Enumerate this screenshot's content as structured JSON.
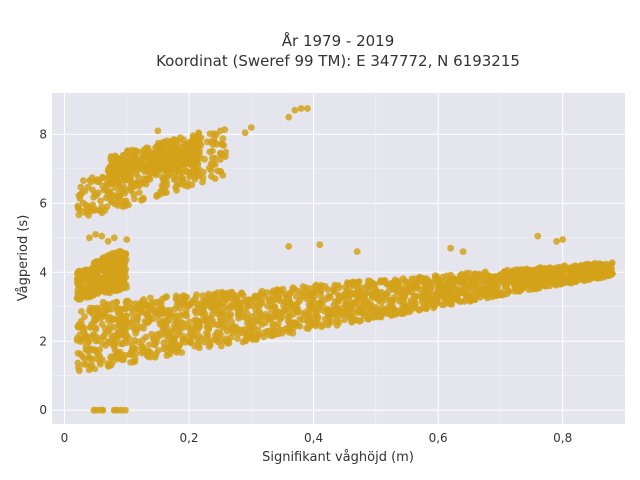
{
  "chart_data": {
    "type": "scatter",
    "title": "År 1979 - 2019",
    "subtitle": "Koordinat (Sweref 99 TM): E 347772, N 6193215",
    "xlabel": "Signifikant våghöjd (m)",
    "ylabel": "Vågperiod (s)",
    "xlim": [
      -0.02,
      0.9
    ],
    "ylim": [
      -0.4,
      9.2
    ],
    "x_ticks": [
      0,
      0.2,
      0.4,
      0.6,
      0.8
    ],
    "x_tick_labels": [
      "0",
      "0,2",
      "0,4",
      "0,6",
      "0,8"
    ],
    "y_ticks": [
      0,
      2,
      4,
      6,
      8
    ],
    "y_tick_labels": [
      "0",
      "2",
      "4",
      "6",
      "8"
    ],
    "grid": true,
    "plot_background": "#e5e5ee",
    "grid_color": "#ffffff",
    "marker_color": "#d4a21a",
    "point_groups": [
      {
        "name": "swell-lower",
        "x_range": [
          0.02,
          0.26
        ],
        "y_low": [
          5.5,
          6.8
        ],
        "y_high": [
          6.6,
          8.2
        ]
      },
      {
        "name": "swell-mid-lower",
        "x_range": [
          0.07,
          0.22
        ],
        "y_low": [
          6.5,
          7.2
        ],
        "y_high": [
          7.4,
          8.1
        ]
      },
      {
        "name": "wind-sea-main",
        "x_range": [
          0.02,
          0.88
        ],
        "y_low": [
          1.1,
          3.9
        ],
        "y_high": [
          3.1,
          4.3
        ]
      },
      {
        "name": "mid-cluster",
        "x_range": [
          0.02,
          0.1
        ],
        "y_low": [
          3.2,
          3.5
        ],
        "y_high": [
          4.0,
          4.8
        ]
      },
      {
        "name": "zero-period",
        "x_range": [
          0.04,
          0.1
        ],
        "y_low": [
          0,
          0
        ],
        "y_high": [
          0,
          0
        ]
      }
    ],
    "outliers": [
      {
        "x": 0.36,
        "y": 8.5
      },
      {
        "x": 0.37,
        "y": 8.7
      },
      {
        "x": 0.38,
        "y": 8.75
      },
      {
        "x": 0.39,
        "y": 8.75
      },
      {
        "x": 0.29,
        "y": 8.05
      },
      {
        "x": 0.3,
        "y": 8.2
      },
      {
        "x": 0.25,
        "y": 8.1
      },
      {
        "x": 0.15,
        "y": 8.1
      },
      {
        "x": 0.07,
        "y": 4.9
      },
      {
        "x": 0.09,
        "y": 4.4
      },
      {
        "x": 0.05,
        "y": 5.1
      },
      {
        "x": 0.06,
        "y": 5.05
      },
      {
        "x": 0.04,
        "y": 5.0
      },
      {
        "x": 0.08,
        "y": 5.0
      },
      {
        "x": 0.1,
        "y": 4.95
      },
      {
        "x": 0.62,
        "y": 4.7
      },
      {
        "x": 0.64,
        "y": 4.6
      },
      {
        "x": 0.76,
        "y": 5.05
      },
      {
        "x": 0.79,
        "y": 4.9
      },
      {
        "x": 0.8,
        "y": 4.95
      },
      {
        "x": 0.83,
        "y": 4.2
      },
      {
        "x": 0.85,
        "y": 4.1
      },
      {
        "x": 0.86,
        "y": 4.2
      },
      {
        "x": 0.87,
        "y": 4.15
      },
      {
        "x": 0.47,
        "y": 4.6
      },
      {
        "x": 0.41,
        "y": 4.8
      },
      {
        "x": 0.36,
        "y": 4.75
      }
    ]
  }
}
